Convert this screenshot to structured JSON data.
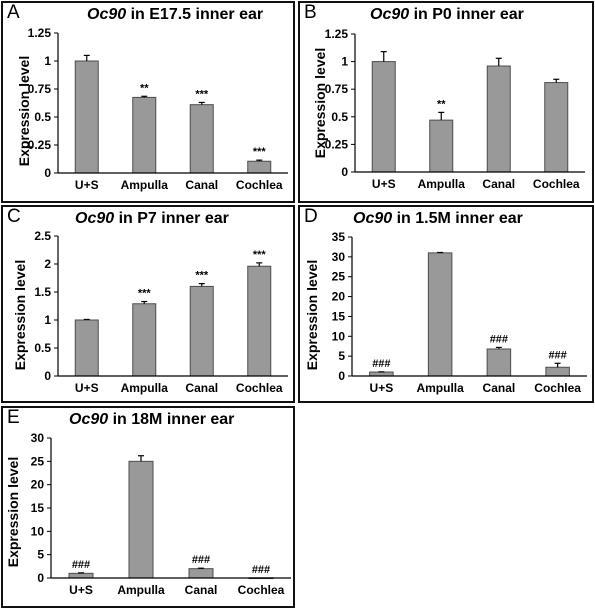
{
  "chart_data": [
    {
      "panel": "A",
      "type": "bar",
      "title_gene": "Oc90",
      "title_rest": " in E17.5 inner ear",
      "ylabel": "Expression level",
      "categories": [
        "U+S",
        "Ampulla",
        "Canal",
        "Cochlea"
      ],
      "values": [
        1.0,
        0.675,
        0.61,
        0.105
      ],
      "errors": [
        0.05,
        0.01,
        0.02,
        0.01
      ],
      "annotations": [
        "",
        "**",
        "***",
        "***"
      ],
      "ylim": [
        0,
        1.25
      ],
      "yticks": [
        0,
        0.25,
        0.5,
        0.75,
        1,
        1.25
      ],
      "ytick_labels": [
        "0",
        "0.25",
        "0.5",
        "0.75",
        "1",
        "1.25"
      ]
    },
    {
      "panel": "B",
      "type": "bar",
      "title_gene": "Oc90",
      "title_rest": " in P0 inner ear",
      "ylabel": "Expression level",
      "categories": [
        "U+S",
        "Ampulla",
        "Canal",
        "Cochlea"
      ],
      "values": [
        1.0,
        0.47,
        0.96,
        0.81
      ],
      "errors": [
        0.09,
        0.07,
        0.07,
        0.03
      ],
      "annotations": [
        "",
        "**",
        "",
        ""
      ],
      "ylim": [
        0,
        1.25
      ],
      "yticks": [
        0,
        0.25,
        0.5,
        0.75,
        1,
        1.25
      ],
      "ytick_labels": [
        "0",
        "0.25",
        "0.5",
        "0.75",
        "1",
        "1.25"
      ]
    },
    {
      "panel": "C",
      "type": "bar",
      "title_gene": "Oc90",
      "title_rest": " in P7 inner ear",
      "ylabel": "Expression level",
      "categories": [
        "U+S",
        "Ampulla",
        "Canal",
        "Cochlea"
      ],
      "values": [
        1.0,
        1.29,
        1.6,
        1.96
      ],
      "errors": [
        0.01,
        0.04,
        0.05,
        0.06
      ],
      "annotations": [
        "",
        "***",
        "***",
        "***"
      ],
      "ylim": [
        0,
        2.5
      ],
      "yticks": [
        0,
        0.5,
        1,
        1.5,
        2,
        2.5
      ],
      "ytick_labels": [
        "0",
        "0.5",
        "1",
        "1.5",
        "2",
        "2.5"
      ]
    },
    {
      "panel": "D",
      "type": "bar",
      "title_gene": "Oc90",
      "title_rest": " in 1.5M inner ear",
      "ylabel": "Expression level",
      "categories": [
        "U+S",
        "Ampulla",
        "Canal",
        "Cochlea"
      ],
      "values": [
        1.0,
        31.0,
        6.8,
        2.2
      ],
      "errors": [
        0.05,
        0.1,
        0.4,
        1.0
      ],
      "annotations": [
        "###",
        "",
        "###",
        "###"
      ],
      "ylim": [
        0,
        35
      ],
      "yticks": [
        0,
        5,
        10,
        15,
        20,
        25,
        30,
        35
      ],
      "ytick_labels": [
        "0",
        "5",
        "10",
        "15",
        "20",
        "25",
        "30",
        "35"
      ]
    },
    {
      "panel": "E",
      "type": "bar",
      "title_gene": "Oc90",
      "title_rest": " in 18M inner ear",
      "ylabel": "Expression level",
      "categories": [
        "U+S",
        "Ampulla",
        "Canal",
        "Cochlea"
      ],
      "values": [
        1.0,
        25.0,
        2.0,
        0.05
      ],
      "errors": [
        0.1,
        1.2,
        0.1,
        0.0
      ],
      "annotations": [
        "###",
        "",
        "###",
        "###"
      ],
      "ylim": [
        0,
        30
      ],
      "yticks": [
        0,
        5,
        10,
        15,
        20,
        25,
        30
      ],
      "ytick_labels": [
        "0",
        "5",
        "10",
        "15",
        "20",
        "25",
        "30"
      ]
    }
  ],
  "colors": {
    "bar": "#999999",
    "bar_edge": "#4d4d4d",
    "axis": "#000000"
  }
}
